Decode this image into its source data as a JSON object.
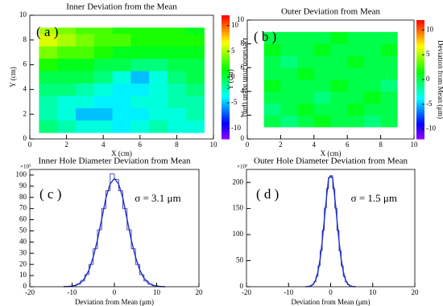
{
  "chart_data": [
    {
      "type": "heatmap",
      "title": "Inner Deviation from the Mean",
      "panel_label": "( a )",
      "x_label": "X (cm)",
      "y_label": "Y (cm)",
      "z_label": "Deviation from Mean (μm)",
      "xlim": [
        0,
        10
      ],
      "ylim": [
        0,
        10
      ],
      "zlim": [
        -12,
        12
      ],
      "xticks": [
        0,
        2,
        4,
        6,
        8,
        10
      ],
      "yticks": [
        0,
        2,
        4,
        6,
        8,
        10
      ],
      "zticks": [
        -10,
        -5,
        0,
        5,
        10
      ],
      "x_edges": [
        0.5,
        1.5,
        2.5,
        3.5,
        4.5,
        5.5,
        6.5,
        7.5,
        8.5,
        9.5
      ],
      "y_edges": [
        0.5,
        1.5,
        2.5,
        3.5,
        4.5,
        5.5,
        6.5,
        7.5,
        8.5,
        9
      ],
      "z": [
        [
          -1,
          -2,
          -3,
          -3,
          -4,
          -3,
          -2,
          -3,
          -3
        ],
        [
          -2,
          -3,
          -5,
          -5,
          -4,
          -4,
          -3,
          -3,
          -2
        ],
        [
          -2,
          -3,
          -3,
          -4,
          -4,
          -3,
          -3,
          -2,
          -2
        ],
        [
          -1,
          -1,
          -2,
          -3,
          -4,
          -4,
          -3,
          -2,
          -1
        ],
        [
          0,
          0,
          0,
          -1,
          -3,
          -5,
          -3,
          -1,
          0
        ],
        [
          2,
          1,
          1,
          0,
          0,
          -1,
          -1,
          0,
          0
        ],
        [
          4,
          3,
          3,
          2,
          1,
          1,
          1,
          1,
          1
        ],
        [
          6,
          5,
          4,
          3,
          3,
          2,
          2,
          2,
          2
        ],
        [
          5,
          4,
          3,
          3,
          2,
          2,
          2,
          2,
          1
        ]
      ]
    },
    {
      "type": "heatmap",
      "title": "Outer Deviation from Mean",
      "panel_label": "( b )",
      "x_label": "X (cm)",
      "y_label": "Y (cm)",
      "z_label": "Deviation from Mean (μm)",
      "xlim": [
        0,
        10
      ],
      "ylim": [
        0,
        10
      ],
      "zlim": [
        -12,
        12
      ],
      "xticks": [
        0,
        2,
        4,
        6,
        8,
        10
      ],
      "yticks": [
        0,
        2,
        4,
        6,
        8,
        10
      ],
      "zticks": [
        -10,
        -5,
        0,
        5,
        10
      ],
      "x_edges": [
        1,
        2,
        3,
        4,
        5,
        6,
        7,
        8,
        9
      ],
      "y_edges": [
        1,
        2,
        3,
        4,
        5,
        6,
        7,
        8,
        9
      ],
      "z": [
        [
          0,
          -1,
          0,
          1,
          0,
          0,
          -1,
          0
        ],
        [
          -1,
          0,
          1,
          0,
          0,
          1,
          0,
          0
        ],
        [
          0,
          0,
          0,
          -1,
          0,
          0,
          1,
          0
        ],
        [
          1,
          0,
          0,
          0,
          1,
          0,
          0,
          -1
        ],
        [
          0,
          0,
          1,
          0,
          0,
          0,
          0,
          0
        ],
        [
          0,
          -1,
          0,
          0,
          0,
          1,
          0,
          0
        ],
        [
          1,
          0,
          0,
          1,
          0,
          0,
          0,
          1
        ],
        [
          0,
          0,
          0,
          0,
          1,
          0,
          0,
          0
        ]
      ]
    },
    {
      "type": "histogram",
      "title": "Inner Hole Diameter Deviation from Mean",
      "panel_label": "( c )",
      "annotation": "σ = 3.1 μm",
      "x_label": "Deviation from Mean (μm)",
      "y_multiplier": "×10³",
      "xlim": [
        -20,
        20
      ],
      "ylim": [
        0,
        105
      ],
      "xticks": [
        -20,
        -10,
        0,
        10,
        20
      ],
      "yticks": [
        0,
        10,
        20,
        30,
        40,
        50,
        60,
        70,
        80,
        90,
        100
      ],
      "bins": [
        -12,
        -11,
        -10,
        -9,
        -8,
        -7,
        -6,
        -5,
        -4,
        -3,
        -2,
        -1,
        0,
        1,
        2,
        3,
        4,
        5,
        6,
        7,
        8,
        9,
        10,
        11,
        12
      ],
      "counts": [
        0.1,
        0.3,
        0.9,
        2.3,
        5.2,
        10.8,
        20,
        34,
        51,
        70,
        86,
        101,
        96,
        86,
        70,
        51,
        34,
        20,
        10.8,
        5.2,
        2.3,
        0.9,
        0.3,
        0.1
      ],
      "color": "#3a3ab0",
      "fit": {
        "color": "#1c2fc4",
        "x": [
          -12,
          -11,
          -10,
          -9,
          -8,
          -7,
          -6,
          -5,
          -4,
          -3,
          -2,
          -1,
          0,
          1,
          2,
          3,
          4,
          5,
          6,
          7,
          8,
          9,
          10,
          11,
          12
        ],
        "values": [
          0.05,
          0.18,
          0.54,
          1.4,
          3.5,
          7.8,
          15,
          26.5,
          41.9,
          60.5,
          79.5,
          92,
          97,
          92,
          79.5,
          60.5,
          41.9,
          26.5,
          15,
          7.8,
          3.5,
          1.4,
          0.54,
          0.18,
          0.05
        ]
      }
    },
    {
      "type": "histogram",
      "title": "Outer Hole Diameter Deviation from Mean",
      "panel_label": "( d )",
      "annotation": "σ = 1.5 μm",
      "x_label": "Deviation from Mean (μm)",
      "y_multiplier": "×10³",
      "xlim": [
        -20,
        20
      ],
      "ylim": [
        0,
        225
      ],
      "xticks": [
        -20,
        -10,
        0,
        10,
        20
      ],
      "yticks": [
        0,
        50,
        100,
        150,
        200
      ],
      "bins": [
        -6,
        -5.5,
        -5,
        -4.5,
        -4,
        -3.5,
        -3,
        -2.5,
        -2,
        -1.5,
        -1,
        -0.5,
        0,
        0.5,
        1,
        1.5,
        2,
        2.5,
        3,
        3.5,
        4,
        4.5,
        5,
        5.5,
        6
      ],
      "counts": [
        0.15,
        0.5,
        1.4,
        3.9,
        9.4,
        20,
        40,
        69,
        108,
        151,
        188,
        210,
        213,
        188,
        151,
        108,
        69,
        40,
        20,
        9.4,
        3.9,
        1.4,
        0.5,
        0.15
      ],
      "color": "#3a3ab0",
      "fit": {
        "color": "#1c2fc4",
        "x": [
          -6,
          -5.5,
          -5,
          -4.5,
          -4,
          -3.5,
          -3,
          -2.5,
          -2,
          -1.5,
          -1,
          -0.5,
          0,
          0.5,
          1,
          1.5,
          2,
          2.5,
          3,
          3.5,
          4,
          4.5,
          5,
          5.5,
          6
        ],
        "values": [
          0.07,
          0.26,
          0.82,
          2.4,
          6.1,
          14,
          29,
          53,
          87,
          129,
          170,
          207,
          213,
          207,
          170,
          129,
          87,
          53,
          29,
          14,
          6.1,
          2.4,
          0.82,
          0.26,
          0.07
        ]
      }
    }
  ]
}
